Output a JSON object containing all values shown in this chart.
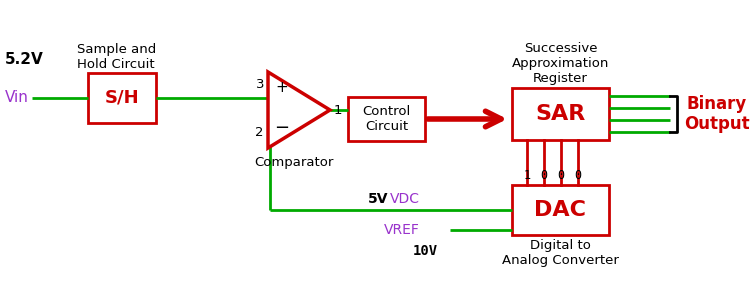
{
  "bg_color": "#ffffff",
  "green": "#00aa00",
  "red": "#cc0000",
  "purple": "#9933cc",
  "black": "#000000",
  "labels": {
    "voltage": "5.2V",
    "vin": "Vin",
    "sh_title": "Sample and\nHold Circuit",
    "sh_box": "S/H",
    "comparator": "Comparator",
    "comp_plus": "+",
    "comp_minus": "−",
    "comp_3": "3",
    "comp_2": "2",
    "comp_1": "1",
    "control": "Control\nCircuit",
    "sar_title": "Successive\nApproximation\nRegister",
    "sar_box": "SAR",
    "dac_box": "DAC",
    "dac_title": "Digital to\nAnalog Converter",
    "binary_output": "Binary\nOutput",
    "vdc_5v": "5V",
    "vdc": "VDC",
    "vref": "VREF",
    "vref_val": "10V",
    "bits": [
      "1",
      "0",
      "0",
      "0"
    ]
  }
}
